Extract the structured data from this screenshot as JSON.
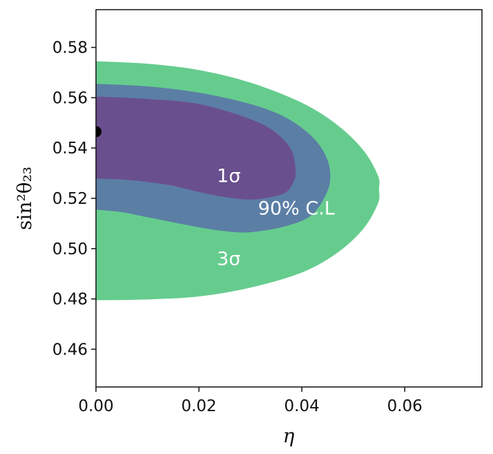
{
  "chart_data": {
    "type": "contour",
    "xlabel": "η",
    "ylabel": "sin²θ₂₃",
    "xlim": [
      0.0,
      0.075
    ],
    "ylim": [
      0.445,
      0.595
    ],
    "x_ticks": [
      {
        "value": 0.0,
        "label": "0.00"
      },
      {
        "value": 0.02,
        "label": "0.02"
      },
      {
        "value": 0.04,
        "label": "0.04"
      },
      {
        "value": 0.06,
        "label": "0.06"
      }
    ],
    "y_ticks": [
      {
        "value": 0.46,
        "label": "0.46"
      },
      {
        "value": 0.48,
        "label": "0.48"
      },
      {
        "value": 0.5,
        "label": "0.50"
      },
      {
        "value": 0.52,
        "label": "0.52"
      },
      {
        "value": 0.54,
        "label": "0.54"
      },
      {
        "value": 0.56,
        "label": "0.56"
      },
      {
        "value": 0.58,
        "label": "0.58"
      }
    ],
    "grid": false,
    "regions": [
      {
        "name": "3σ",
        "color": "#66cc8e",
        "label_at": [
          0.0235,
          0.4935
        ],
        "boundary": [
          [
            0.0,
            0.5745
          ],
          [
            0.01,
            0.5735
          ],
          [
            0.02,
            0.571
          ],
          [
            0.03,
            0.566
          ],
          [
            0.04,
            0.558
          ],
          [
            0.047,
            0.549
          ],
          [
            0.052,
            0.539
          ],
          [
            0.0548,
            0.529
          ],
          [
            0.055,
            0.5235
          ],
          [
            0.0548,
            0.518
          ],
          [
            0.052,
            0.508
          ],
          [
            0.047,
            0.4985
          ],
          [
            0.04,
            0.4905
          ],
          [
            0.03,
            0.4845
          ],
          [
            0.02,
            0.481
          ],
          [
            0.01,
            0.4798
          ],
          [
            0.0,
            0.4795
          ]
        ]
      },
      {
        "name": "90% C.L",
        "color": "#5b7ea5",
        "label_at": [
          0.0315,
          0.5135
        ],
        "boundary": [
          [
            0.0,
            0.5655
          ],
          [
            0.01,
            0.5645
          ],
          [
            0.02,
            0.562
          ],
          [
            0.03,
            0.5575
          ],
          [
            0.037,
            0.552
          ],
          [
            0.042,
            0.5445
          ],
          [
            0.0445,
            0.5375
          ],
          [
            0.0455,
            0.5305
          ],
          [
            0.045,
            0.523
          ],
          [
            0.042,
            0.5135
          ],
          [
            0.037,
            0.509
          ],
          [
            0.03,
            0.5065
          ],
          [
            0.025,
            0.507
          ],
          [
            0.02,
            0.5085
          ],
          [
            0.01,
            0.5125
          ],
          [
            0.005,
            0.5145
          ],
          [
            0.0,
            0.5155
          ]
        ]
      },
      {
        "name": "1σ",
        "color": "#6a4f8e",
        "label_at": [
          0.0235,
          0.5265
        ],
        "boundary": [
          [
            0.0,
            0.5605
          ],
          [
            0.01,
            0.5595
          ],
          [
            0.02,
            0.5575
          ],
          [
            0.03,
            0.5515
          ],
          [
            0.035,
            0.546
          ],
          [
            0.038,
            0.539
          ],
          [
            0.0388,
            0.531
          ],
          [
            0.0385,
            0.527
          ],
          [
            0.037,
            0.5225
          ],
          [
            0.034,
            0.5205
          ],
          [
            0.03,
            0.5195
          ],
          [
            0.025,
            0.5205
          ],
          [
            0.02,
            0.5225
          ],
          [
            0.015,
            0.525
          ],
          [
            0.01,
            0.5265
          ],
          [
            0.005,
            0.5275
          ],
          [
            0.0,
            0.5278
          ]
        ]
      }
    ],
    "best_fit": {
      "x": 0.0,
      "y": 0.5465,
      "color": "#000000"
    }
  }
}
